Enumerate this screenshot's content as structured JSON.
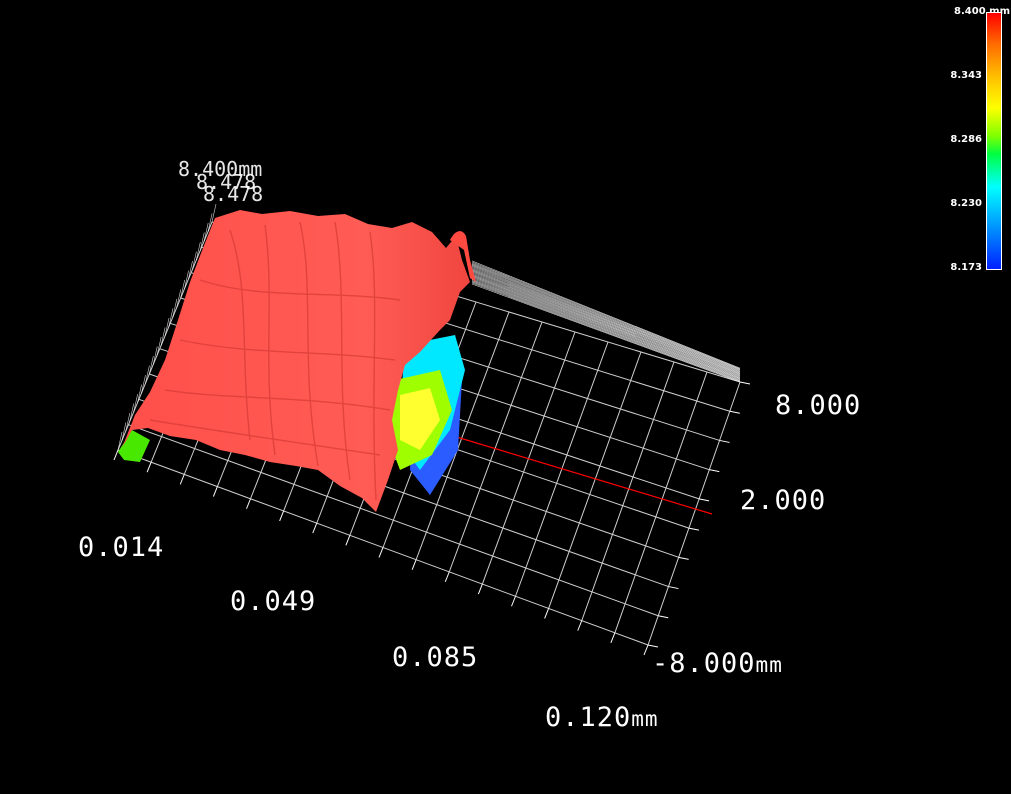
{
  "chart_data": {
    "type": "surface3d",
    "z_unit": "mm",
    "colorbar": {
      "max_label": "8.400 mm",
      "ticks": [
        "8.343",
        "8.286",
        "8.230",
        "8.173"
      ],
      "range": [
        8.173,
        8.4
      ],
      "colors": [
        "#ff0000",
        "#ffff00",
        "#00ff40",
        "#00ffff",
        "#0020ff"
      ]
    },
    "x_axis": {
      "ticks": [
        "0.014",
        "0.049",
        "0.085"
      ],
      "last_tick": "0.120",
      "unit": "mm",
      "range": [
        0.014,
        0.12
      ]
    },
    "y_axis": {
      "ticks": [
        "8.000",
        "2.000"
      ],
      "last_tick": "-8.000",
      "unit": "mm",
      "range": [
        -8.0,
        8.0
      ]
    },
    "overlapping_labels": [
      "8.400mm",
      "8.478"
    ],
    "surface_color": "#ff5a50",
    "grid_color": "#ffffff",
    "highlight_line_color": "#ff0000"
  }
}
